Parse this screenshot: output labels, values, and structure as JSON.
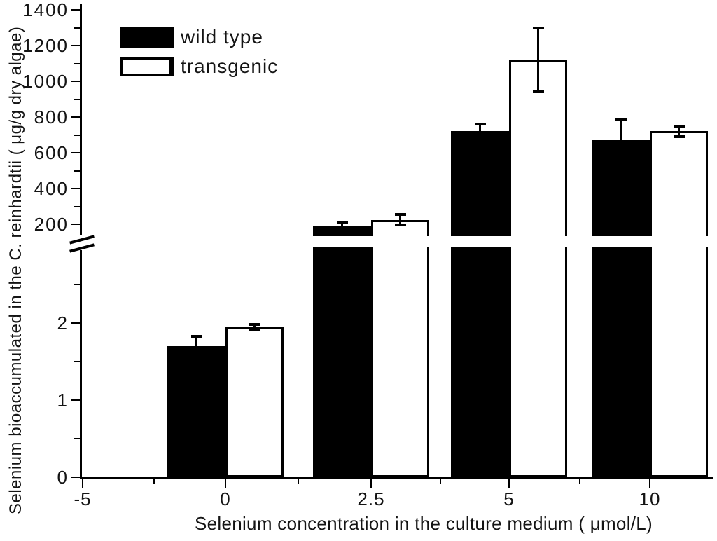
{
  "figure": {
    "background": "#ffffff",
    "ink": "#000000"
  },
  "legend": {
    "position": "top-left",
    "items": [
      {
        "label": "wild type",
        "swatch": "black-filled"
      },
      {
        "label": "transgenic",
        "swatch": "white-outlined"
      }
    ]
  },
  "chart_data": {
    "type": "bar",
    "xlabel": "Selenium concentration in the culture medium ( μmol/L)",
    "ylabel": "Selenium bioaccumulated in the C. reinhardtii ( μg/g dry algae)",
    "categories": [
      "0",
      "2.5",
      "5",
      "10"
    ],
    "series": [
      {
        "name": "wild type",
        "fill": "#000000",
        "values": [
          1.7,
          190,
          720,
          670
        ],
        "errors": [
          0.13,
          20,
          40,
          120
        ]
      },
      {
        "name": "transgenic",
        "fill": "#ffffff",
        "values": [
          1.95,
          225,
          1120,
          720
        ],
        "errors": [
          0.03,
          30,
          180,
          30
        ]
      }
    ],
    "x_axis": {
      "tick_labels": [
        "-5",
        "0",
        "2.5",
        "5",
        "10"
      ]
    },
    "y_axis": {
      "broken_axis": true,
      "upper_ticks": [
        1400,
        1200,
        1000,
        800,
        600,
        400,
        200
      ],
      "upper_minor_ticks": [
        1300,
        1100,
        900,
        700,
        500,
        300
      ],
      "upper_range": [
        200,
        1400
      ],
      "lower_ticks": [
        2,
        1,
        0
      ],
      "lower_minor_ticks": [
        2.5,
        1.5,
        0.5
      ],
      "lower_range": [
        0,
        2.8
      ]
    },
    "legend_entries": [
      "wild type",
      "transgenic"
    ],
    "error_bars": true,
    "grid": false
  }
}
